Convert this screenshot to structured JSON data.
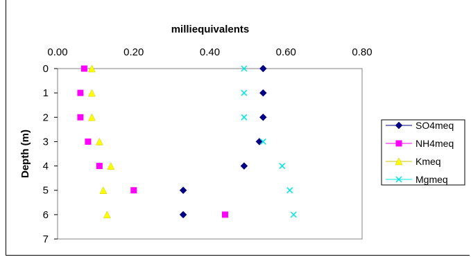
{
  "chart_data": {
    "type": "scatter",
    "title": "milliequivalents",
    "xlabel": "",
    "ylabel": "Depth (m)",
    "xlim": [
      0,
      0.8
    ],
    "ylim": [
      0,
      7
    ],
    "y_reversed": true,
    "x_axis_position": "top",
    "x_ticks": [
      "0.00",
      "0.20",
      "0.40",
      "0.60",
      "0.80"
    ],
    "y_ticks": [
      "0",
      "1",
      "2",
      "3",
      "4",
      "5",
      "6",
      "7"
    ],
    "grid": false,
    "legend_position": "right",
    "series": [
      {
        "name": "SO4meq",
        "color": "#000080",
        "marker": "diamond",
        "points": [
          [
            0.54,
            0
          ],
          [
            0.54,
            1
          ],
          [
            0.54,
            2
          ],
          [
            0.53,
            3
          ],
          [
            0.49,
            4
          ],
          [
            0.33,
            5
          ],
          [
            0.33,
            6
          ]
        ]
      },
      {
        "name": "NH4meq",
        "color": "#ff00ff",
        "marker": "square",
        "points": [
          [
            0.07,
            0
          ],
          [
            0.06,
            1
          ],
          [
            0.06,
            2
          ],
          [
            0.08,
            3
          ],
          [
            0.11,
            4
          ],
          [
            0.2,
            5
          ],
          [
            0.44,
            6
          ]
        ]
      },
      {
        "name": "Kmeq",
        "color": "#ffff00",
        "marker": "triangle",
        "points": [
          [
            0.09,
            0
          ],
          [
            0.09,
            1
          ],
          [
            0.09,
            2
          ],
          [
            0.11,
            3
          ],
          [
            0.14,
            4
          ],
          [
            0.12,
            5
          ],
          [
            0.13,
            6
          ]
        ]
      },
      {
        "name": "Mgmeq",
        "color": "#00e5e5",
        "marker": "x",
        "points": [
          [
            0.49,
            0
          ],
          [
            0.49,
            1
          ],
          [
            0.49,
            2
          ],
          [
            0.54,
            3
          ],
          [
            0.59,
            4
          ],
          [
            0.61,
            5
          ],
          [
            0.62,
            6
          ]
        ]
      }
    ]
  }
}
